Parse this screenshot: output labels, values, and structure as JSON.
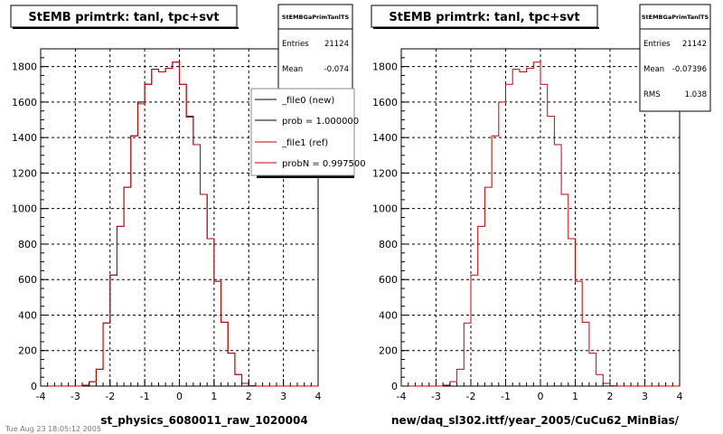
{
  "footer": "Tue Aug 23 18:05:12 2005",
  "chart_data": [
    {
      "type": "line",
      "title": "StEMB primtrk: tanl, tpc+svt",
      "xlabel": "st_physics_6080011_raw_1020004",
      "ylabel": "",
      "xlim": [
        -4,
        4
      ],
      "ylim": [
        0,
        1900
      ],
      "xticks": [
        -4,
        -3,
        -2,
        -1,
        0,
        1,
        2,
        3,
        4
      ],
      "yticks": [
        0,
        200,
        400,
        600,
        800,
        1000,
        1200,
        1400,
        1600,
        1800
      ],
      "grid": true,
      "bin_edges": [
        -4.0,
        -3.8,
        -3.6,
        -3.4,
        -3.2,
        -3.0,
        -2.8,
        -2.6,
        -2.4,
        -2.2,
        -2.0,
        -1.8,
        -1.6,
        -1.4,
        -1.2,
        -1.0,
        -0.8,
        -0.6,
        -0.4,
        -0.2,
        0.0,
        0.2,
        0.4,
        0.6,
        0.8,
        1.0,
        1.2,
        1.4,
        1.6,
        1.8,
        2.0,
        2.2,
        2.4,
        2.6,
        2.8,
        3.0,
        3.2,
        3.4,
        3.6,
        3.8,
        4.0
      ],
      "series": [
        {
          "name": "_file0 (new)",
          "color": "#000000",
          "values": [
            0,
            0,
            0,
            0,
            0,
            0,
            5,
            25,
            95,
            355,
            625,
            900,
            1120,
            1410,
            1600,
            1700,
            1785,
            1770,
            1790,
            1825,
            1700,
            1520,
            1360,
            1080,
            830,
            590,
            360,
            185,
            65,
            15,
            2,
            0,
            0,
            0,
            0,
            0,
            0,
            0,
            0,
            0
          ]
        },
        {
          "name": "_file1 (ref)",
          "color": "#cc0000",
          "values": [
            0,
            0,
            0,
            0,
            0,
            0,
            5,
            25,
            95,
            355,
            625,
            900,
            1120,
            1410,
            1590,
            1700,
            1785,
            1770,
            1790,
            1825,
            1700,
            1515,
            1360,
            1080,
            830,
            590,
            360,
            185,
            65,
            15,
            2,
            0,
            0,
            0,
            0,
            0,
            0,
            0,
            0,
            0
          ]
        }
      ],
      "stats": {
        "title": "StEMBGaPrimTanlTS",
        "entries_label": "Entries",
        "entries": "21124",
        "mean_label": "Mean",
        "mean": "-0.074"
      },
      "legend": {
        "placement": "top-right",
        "entries": [
          {
            "label": "_file0 (new)",
            "color": "#000000"
          },
          {
            "label": "prob = 1.000000",
            "color": "#000000"
          },
          {
            "label": "_file1 (ref)",
            "color": "#cc0000"
          },
          {
            "label": "probN = 0.997500",
            "color": "#cc0000"
          }
        ]
      }
    },
    {
      "type": "line",
      "title": "StEMB primtrk: tanl, tpc+svt",
      "xlabel": "new/daq_sl302.ittf/year_2005/CuCu62_MinBias/",
      "ylabel": "",
      "xlim": [
        -4,
        4
      ],
      "ylim": [
        0,
        1900
      ],
      "xticks": [
        -4,
        -3,
        -2,
        -1,
        0,
        1,
        2,
        3,
        4
      ],
      "yticks": [
        0,
        200,
        400,
        600,
        800,
        1000,
        1200,
        1400,
        1600,
        1800
      ],
      "grid": true,
      "bin_edges": [
        -4.0,
        -3.8,
        -3.6,
        -3.4,
        -3.2,
        -3.0,
        -2.8,
        -2.6,
        -2.4,
        -2.2,
        -2.0,
        -1.8,
        -1.6,
        -1.4,
        -1.2,
        -1.0,
        -0.8,
        -0.6,
        -0.4,
        -0.2,
        0.0,
        0.2,
        0.4,
        0.6,
        0.8,
        1.0,
        1.2,
        1.4,
        1.6,
        1.8,
        2.0,
        2.2,
        2.4,
        2.6,
        2.8,
        3.0,
        3.2,
        3.4,
        3.6,
        3.8,
        4.0
      ],
      "series": [
        {
          "name": "",
          "color": "#cc0000",
          "values": [
            0,
            0,
            0,
            0,
            0,
            0,
            5,
            25,
            95,
            355,
            625,
            900,
            1120,
            1410,
            1600,
            1700,
            1785,
            1770,
            1790,
            1825,
            1700,
            1520,
            1360,
            1080,
            830,
            590,
            360,
            185,
            65,
            15,
            2,
            0,
            0,
            0,
            0,
            0,
            0,
            0,
            0,
            0
          ]
        }
      ],
      "stats": {
        "title": "StEMBGaPrimTanlTS",
        "entries_label": "Entries",
        "entries": "21142",
        "mean_label": "Mean",
        "mean": "-0.07396",
        "rms_label": "RMS",
        "rms": "1.038"
      }
    }
  ]
}
